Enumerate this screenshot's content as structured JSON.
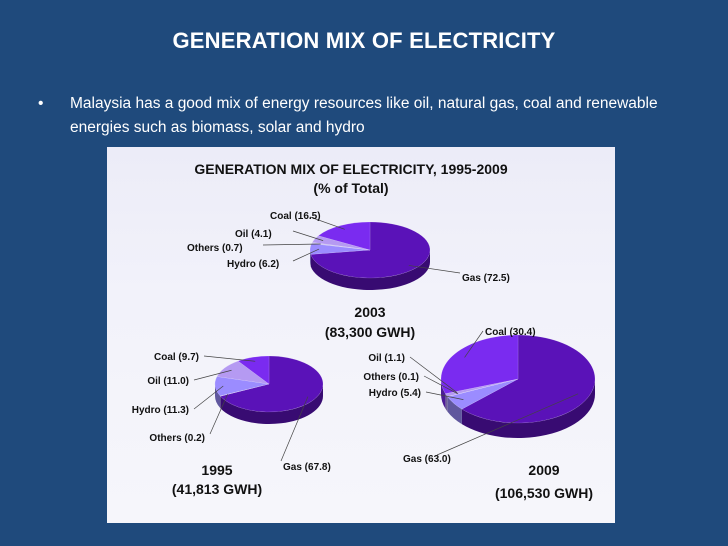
{
  "slide": {
    "title": "GENERATION MIX OF ELECTRICITY",
    "bullet_symbol": "•",
    "bullet_text": "Malaysia has a good mix of energy resources like oil, natural gas, coal and renewable energies such as biomass, solar and hydro"
  },
  "colors": {
    "background": "#1f4a7c",
    "gas": "#5a12b8",
    "coal": "#7a2bf0",
    "oil": "#b59af2",
    "hydro": "#9b8cff",
    "others": "#c8c0f0"
  },
  "chart_data": {
    "type": "pie",
    "title": "GENERATION MIX OF ELECTRICITY, 1995-2009",
    "subtitle": "(% of Total)",
    "charts": [
      {
        "year": "1995",
        "total": "(41,813 GWH)",
        "slices": [
          {
            "name": "Gas",
            "value": 67.8,
            "label": "Gas (67.8)"
          },
          {
            "name": "Others",
            "value": 0.2,
            "label": "Others (0.2)"
          },
          {
            "name": "Hydro",
            "value": 11.3,
            "label": "Hydro (11.3)"
          },
          {
            "name": "Oil",
            "value": 11.0,
            "label": "Oil (11.0)"
          },
          {
            "name": "Coal",
            "value": 9.7,
            "label": "Coal (9.7)"
          }
        ]
      },
      {
        "year": "2003",
        "total": "(83,300 GWH)",
        "slices": [
          {
            "name": "Gas",
            "value": 72.5,
            "label": "Gas (72.5)"
          },
          {
            "name": "Hydro",
            "value": 6.2,
            "label": "Hydro (6.2)"
          },
          {
            "name": "Others",
            "value": 0.7,
            "label": "Others (0.7)"
          },
          {
            "name": "Oil",
            "value": 4.1,
            "label": "Oil (4.1)"
          },
          {
            "name": "Coal",
            "value": 16.5,
            "label": "Coal (16.5)"
          }
        ]
      },
      {
        "year": "2009",
        "total": "(106,530 GWH)",
        "slices": [
          {
            "name": "Gas",
            "value": 63.0,
            "label": "Gas (63.0)"
          },
          {
            "name": "Hydro",
            "value": 5.4,
            "label": "Hydro (5.4)"
          },
          {
            "name": "Others",
            "value": 0.1,
            "label": "Others (0.1)"
          },
          {
            "name": "Oil",
            "value": 1.1,
            "label": "Oil (1.1)"
          },
          {
            "name": "Coal",
            "value": 30.4,
            "label": "Coal (30.4)"
          }
        ]
      }
    ]
  }
}
